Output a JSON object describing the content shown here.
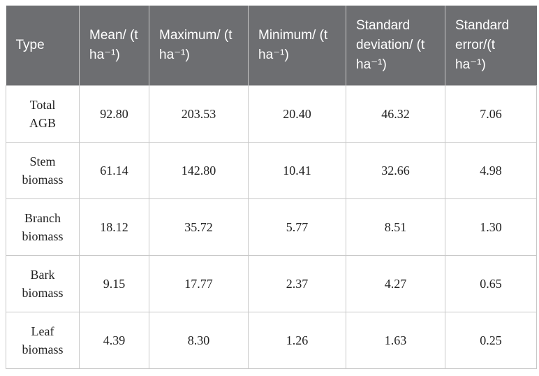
{
  "table": {
    "header": [
      "Type",
      "Mean/ (t ha⁻¹)",
      "Maximum/ (t ha⁻¹)",
      "Minimum/ (t ha⁻¹)",
      "Standard deviation/ (t ha⁻¹)",
      "Standard error/(t ha⁻¹)"
    ],
    "rows": [
      [
        "Total AGB",
        "92.80",
        "203.53",
        "20.40",
        "46.32",
        "7.06"
      ],
      [
        "Stem biomass",
        "61.14",
        "142.80",
        "10.41",
        "32.66",
        "4.98"
      ],
      [
        "Branch biomass",
        "18.12",
        "35.72",
        "5.77",
        "8.51",
        "1.30"
      ],
      [
        "Bark biomass",
        "9.15",
        "17.77",
        "2.37",
        "4.27",
        "0.65"
      ],
      [
        "Leaf biomass",
        "4.39",
        "8.30",
        "1.26",
        "1.63",
        "0.25"
      ]
    ]
  }
}
